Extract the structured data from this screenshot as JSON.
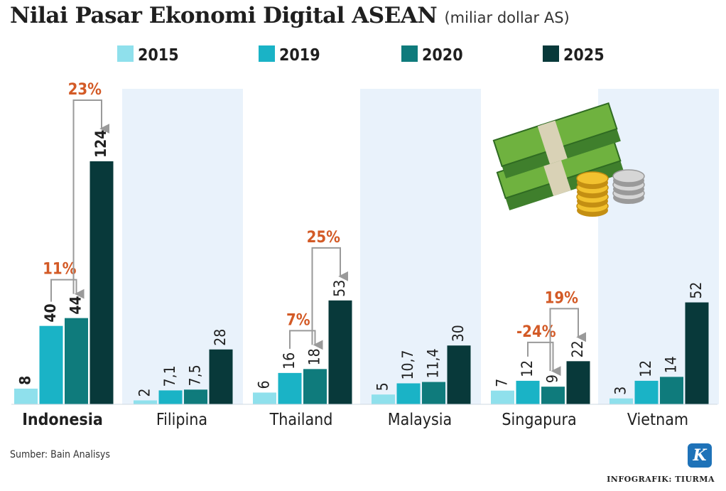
{
  "title": "Nilai Pasar Ekonomi Digital ASEAN",
  "subtitle": "(miliar dollar AS)",
  "source": "Sumber: Bain Analisys",
  "logo_letter": "K",
  "credit": "INFOGRAFIK: TIURMA",
  "colors": {
    "2015": "#8fe0ec",
    "2019": "#1ab3c6",
    "2020": "#0f7b7c",
    "2025": "#08393a",
    "panel": "#e9f2fb",
    "growth": "#d35a26",
    "arrow": "#9a9a9a"
  },
  "chart_data": {
    "type": "bar",
    "title": "Nilai Pasar Ekonomi Digital ASEAN",
    "subtitle": "(miliar dollar AS)",
    "categories": [
      "Indonesia",
      "Filipina",
      "Thailand",
      "Malaysia",
      "Singapura",
      "Vietnam"
    ],
    "legend_position": "top",
    "series": [
      {
        "name": "2015",
        "values": [
          8,
          2,
          6,
          5,
          7,
          3
        ],
        "labels": [
          "8",
          "2",
          "6",
          "5",
          "7",
          "3"
        ]
      },
      {
        "name": "2019",
        "values": [
          40,
          7.1,
          16,
          10.7,
          12,
          12
        ],
        "labels": [
          "40",
          "7,1",
          "16",
          "10,7",
          "12",
          "12"
        ]
      },
      {
        "name": "2020",
        "values": [
          44,
          7.5,
          18,
          11.4,
          9,
          14
        ],
        "labels": [
          "44",
          "7,5",
          "18",
          "11,4",
          "9",
          "14"
        ]
      },
      {
        "name": "2025",
        "values": [
          124,
          28,
          53,
          30,
          22,
          52
        ],
        "labels": [
          "124",
          "28",
          "53",
          "30",
          "22",
          "52"
        ]
      }
    ],
    "ylim": [
      0,
      124
    ],
    "growth_annotations": [
      {
        "category": "Indonesia",
        "from": "2019",
        "to": "2020",
        "label": "11%"
      },
      {
        "category": "Indonesia",
        "from": "2020",
        "to": "2025",
        "label": "23%"
      },
      {
        "category": "Thailand",
        "from": "2019",
        "to": "2020",
        "label": "7%"
      },
      {
        "category": "Thailand",
        "from": "2020",
        "to": "2025",
        "label": "25%"
      },
      {
        "category": "Singapura",
        "from": "2019",
        "to": "2020",
        "label": "-24%"
      },
      {
        "category": "Singapura",
        "from": "2020",
        "to": "2025",
        "label": "19%"
      }
    ],
    "highlight_category": "Indonesia"
  }
}
